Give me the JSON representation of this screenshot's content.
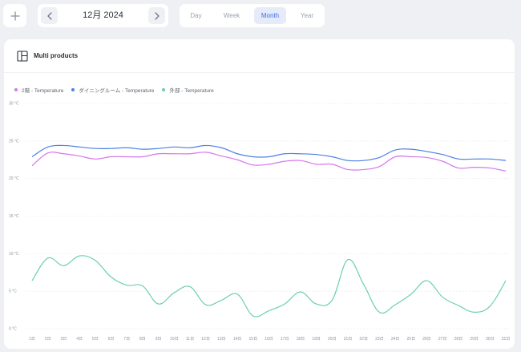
{
  "toolbar": {
    "add_icon": "plus-icon",
    "month_label": "12月 2024",
    "prev_icon": "chevron-left-icon",
    "next_icon": "chevron-right-icon",
    "tabs": [
      {
        "label": "Day",
        "active": false
      },
      {
        "label": "Week",
        "active": false
      },
      {
        "label": "Month",
        "active": true
      },
      {
        "label": "Year",
        "active": false
      }
    ]
  },
  "card": {
    "title": "Multi products",
    "icon": "dashboard-layout-icon"
  },
  "colors": {
    "accent": "#3d6fe0",
    "series_2f": "#d577ec",
    "series_dining": "#4f7fe3",
    "series_outside": "#6bd0ae"
  },
  "chart_data": {
    "type": "line",
    "title": "",
    "xlabel": "",
    "ylabel": "",
    "ylim": [
      0,
      30
    ],
    "yticks": [
      0,
      5,
      10,
      15,
      20,
      25,
      30
    ],
    "ytick_labels": [
      "0 °C",
      "5 °C",
      "10 °C",
      "15 °C",
      "20 °C",
      "25 °C",
      "30 °C"
    ],
    "grid": true,
    "legend": "top-left",
    "categories": [
      "1日",
      "2日",
      "3日",
      "4日",
      "5日",
      "6日",
      "7日",
      "8日",
      "9日",
      "10日",
      "11日",
      "12日",
      "13日",
      "14日",
      "15日",
      "16日",
      "17日",
      "18日",
      "19日",
      "20日",
      "21日",
      "22日",
      "23日",
      "24日",
      "25日",
      "26日",
      "27日",
      "28日",
      "29日",
      "30日",
      "31日"
    ],
    "series": [
      {
        "name": "2階 - Temperature",
        "color": "#d577ec",
        "values": [
          21.7,
          23.4,
          23.3,
          23.0,
          22.6,
          22.9,
          22.9,
          22.9,
          23.3,
          23.3,
          23.3,
          23.5,
          23.0,
          22.5,
          21.8,
          21.9,
          22.3,
          22.4,
          21.9,
          21.9,
          21.2,
          21.2,
          21.6,
          22.9,
          22.9,
          22.8,
          22.3,
          21.4,
          21.5,
          21.4,
          21.0
        ]
      },
      {
        "name": "ダイニングルーム - Temperature",
        "color": "#4f7fe3",
        "values": [
          22.9,
          24.2,
          24.4,
          24.2,
          24.0,
          24.0,
          24.1,
          23.9,
          24.0,
          24.2,
          24.1,
          24.4,
          24.1,
          23.3,
          22.9,
          22.9,
          23.3,
          23.3,
          23.2,
          22.9,
          22.4,
          22.4,
          22.8,
          23.8,
          23.9,
          23.6,
          23.2,
          22.6,
          22.6,
          22.6,
          22.4
        ]
      },
      {
        "name": "外部 - Temperature",
        "color": "#6bd0ae",
        "values": [
          6.4,
          9.4,
          8.4,
          9.7,
          9.1,
          6.9,
          5.8,
          5.7,
          3.3,
          4.8,
          5.6,
          3.2,
          3.8,
          4.6,
          1.7,
          2.4,
          3.3,
          4.9,
          3.3,
          3.8,
          9.2,
          5.9,
          2.2,
          3.2,
          4.6,
          6.4,
          4.2,
          3.1,
          2.2,
          3.0,
          6.4
        ]
      }
    ]
  }
}
